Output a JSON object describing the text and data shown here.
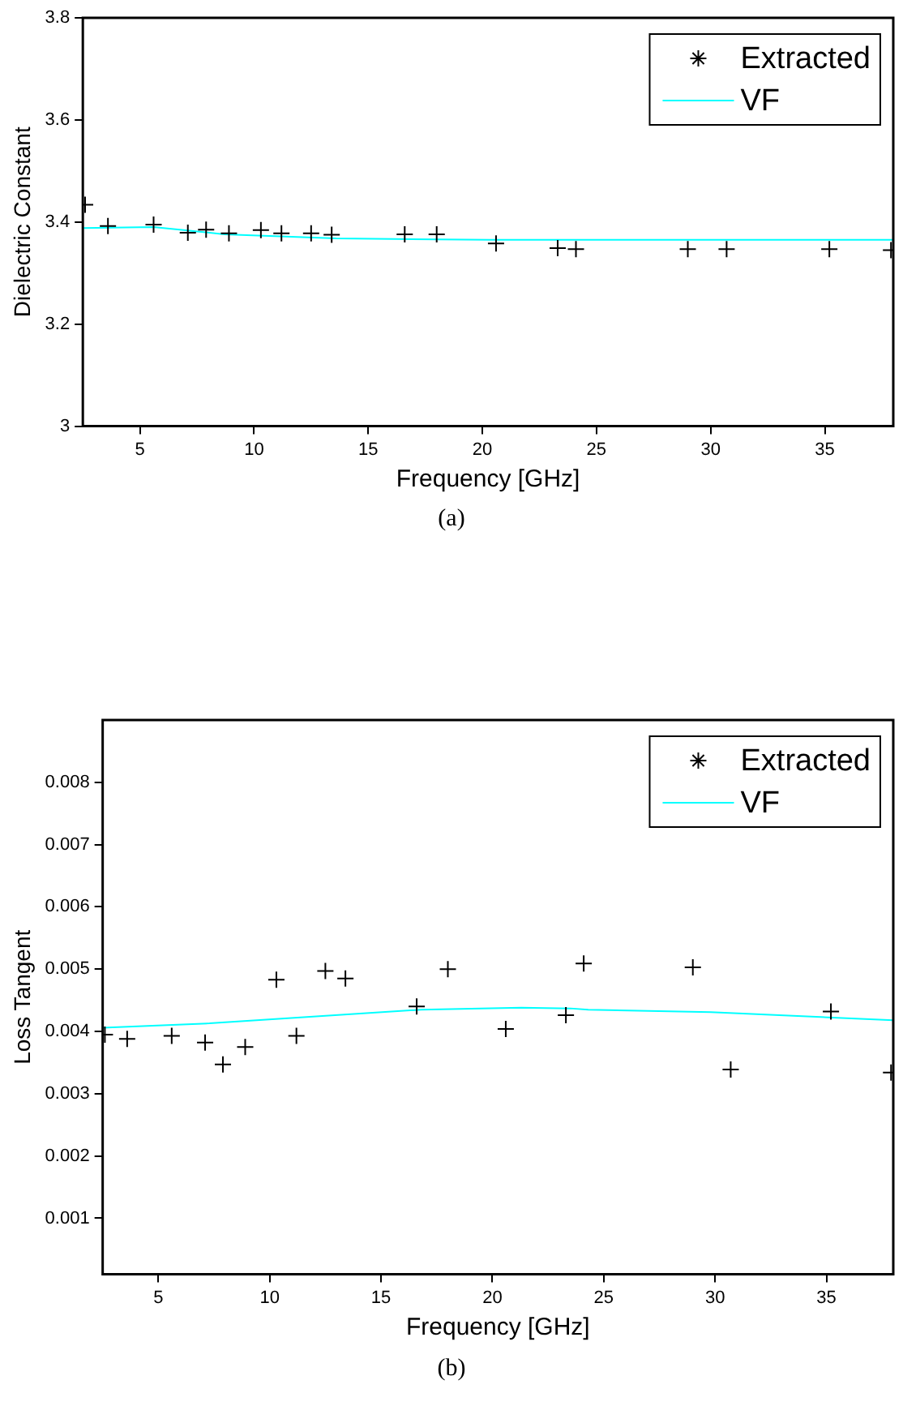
{
  "chart_data": [
    {
      "type": "scatter",
      "xlabel": "Frequency [GHz]",
      "ylabel": "Dielectric Constant",
      "annotations": [
        "(a)"
      ],
      "xlim": [
        2.5,
        38
      ],
      "xticks": [
        5,
        10,
        15,
        20,
        25,
        30,
        35
      ],
      "ylim": [
        3,
        3.8
      ],
      "yticks": [
        3,
        3.2,
        3.4,
        3.6,
        3.8
      ],
      "legend": "top right",
      "series": [
        {
          "name": "Extracted",
          "type": "scatter",
          "marker": "cross",
          "color": "#000000",
          "x": [
            2.6,
            3.6,
            5.6,
            7.1,
            7.9,
            8.9,
            10.3,
            11.2,
            12.5,
            13.4,
            16.6,
            18.0,
            20.6,
            23.3,
            24.1,
            29.0,
            30.7,
            35.2,
            37.9
          ],
          "values": [
            3.434,
            3.392,
            3.395,
            3.379,
            3.385,
            3.378,
            3.384,
            3.378,
            3.378,
            3.375,
            3.376,
            3.376,
            3.358,
            3.349,
            3.347,
            3.347,
            3.347,
            3.347,
            3.345
          ]
        },
        {
          "name": "VF",
          "type": "line",
          "marker": "none",
          "color": "#00ffff",
          "x": [
            2.5,
            5.6,
            8.7,
            13.6,
            20.3,
            38
          ],
          "values": [
            3.388,
            3.39,
            3.376,
            3.368,
            3.365,
            3.365
          ]
        }
      ]
    },
    {
      "type": "scatter",
      "xlabel": "Frequency [GHz]",
      "ylabel": "Loss Tangent",
      "annotations": [
        "(b)"
      ],
      "xlim": [
        2.5,
        38
      ],
      "xticks": [
        5,
        10,
        15,
        20,
        25,
        30,
        35
      ],
      "ylim": [
        0.0001,
        0.009
      ],
      "yticks": [
        0.001,
        0.002,
        0.003,
        0.004,
        0.005,
        0.006,
        0.007,
        0.008
      ],
      "legend": "top right",
      "series": [
        {
          "name": "Extracted",
          "type": "scatter",
          "marker": "cross",
          "color": "#000000",
          "x": [
            2.6,
            3.6,
            5.6,
            7.1,
            7.9,
            8.9,
            10.3,
            11.2,
            12.5,
            13.4,
            16.6,
            18.0,
            20.6,
            23.3,
            24.1,
            29.0,
            30.7,
            35.2,
            37.9
          ],
          "values": [
            0.00395,
            0.00388,
            0.00393,
            0.00382,
            0.00347,
            0.00375,
            0.00483,
            0.00393,
            0.00497,
            0.00485,
            0.0044,
            0.005,
            0.00404,
            0.00426,
            0.00509,
            0.00503,
            0.00339,
            0.00432,
            0.00334
          ]
        },
        {
          "name": "VF",
          "type": "line",
          "marker": "none",
          "color": "#00ffff",
          "x": [
            2.5,
            7.3,
            16.8,
            21.3,
            23.5,
            24.3,
            29.8,
            38
          ],
          "values": [
            0.00406,
            0.00413,
            0.00435,
            0.00438,
            0.00437,
            0.00435,
            0.00431,
            0.00418
          ]
        }
      ]
    }
  ]
}
